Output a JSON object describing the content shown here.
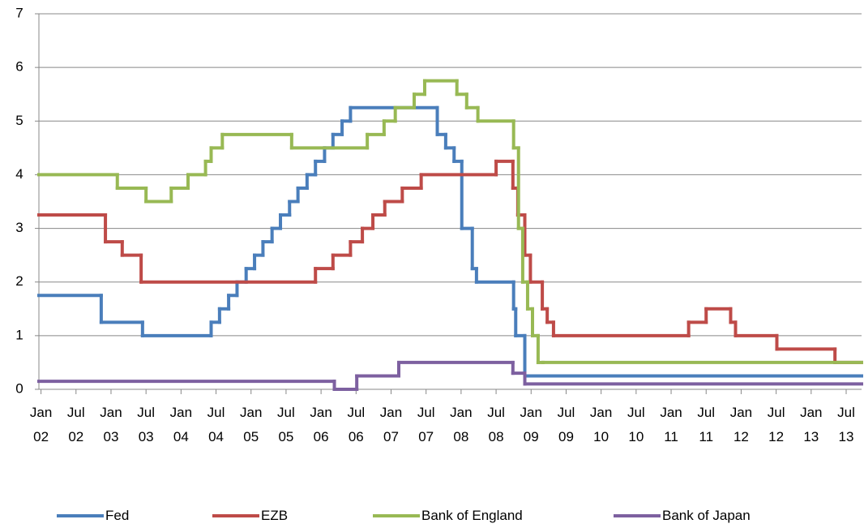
{
  "chart_data": {
    "type": "line",
    "step": true,
    "xlim": [
      2001.97,
      2013.72
    ],
    "ylim": [
      0,
      7
    ],
    "yticks": [
      0,
      1,
      2,
      3,
      4,
      5,
      6,
      7
    ],
    "grid": true,
    "legend": "bottom",
    "xticks": [
      {
        "value": 2002,
        "label": "Jan 02"
      },
      {
        "value": 2002.5,
        "label": "Jul 02"
      },
      {
        "value": 2003,
        "label": "Jan 03"
      },
      {
        "value": 2003.5,
        "label": "Jul 03"
      },
      {
        "value": 2004,
        "label": "Jan 04"
      },
      {
        "value": 2004.5,
        "label": "Jul 04"
      },
      {
        "value": 2005,
        "label": "Jan 05"
      },
      {
        "value": 2005.5,
        "label": "Jul 05"
      },
      {
        "value": 2006,
        "label": "Jan 06"
      },
      {
        "value": 2006.5,
        "label": "Jul 06"
      },
      {
        "value": 2007,
        "label": "Jan 07"
      },
      {
        "value": 2007.5,
        "label": "Jul 07"
      },
      {
        "value": 2008,
        "label": "Jan 08"
      },
      {
        "value": 2008.5,
        "label": "Jul 08"
      },
      {
        "value": 2009,
        "label": "Jan 09"
      },
      {
        "value": 2009.5,
        "label": "Jul 09"
      },
      {
        "value": 2010,
        "label": "Jan 10"
      },
      {
        "value": 2010.5,
        "label": "Jul 10"
      },
      {
        "value": 2011,
        "label": "Jan 11"
      },
      {
        "value": 2011.5,
        "label": "Jul 11"
      },
      {
        "value": 2012,
        "label": "Jan 12"
      },
      {
        "value": 2012.5,
        "label": "Jul 12"
      },
      {
        "value": 2013,
        "label": "Jan 13"
      },
      {
        "value": 2013.5,
        "label": "Jul 13"
      }
    ],
    "series": [
      {
        "name": "Fed",
        "color": "#4a7ebb",
        "x": [
          2001.97,
          2002.86,
          2003.45,
          2004.43,
          2004.55,
          2004.68,
          2004.8,
          2004.93,
          2005.05,
          2005.17,
          2005.3,
          2005.42,
          2005.55,
          2005.67,
          2005.8,
          2005.92,
          2006.05,
          2006.17,
          2006.3,
          2006.42,
          2007.66,
          2007.78,
          2007.9,
          2008.01,
          2008.16,
          2008.22,
          2008.75,
          2008.78,
          2008.91
        ],
        "values": [
          1.75,
          1.25,
          1.0,
          1.25,
          1.5,
          1.75,
          2.0,
          2.25,
          2.5,
          2.75,
          3.0,
          3.25,
          3.5,
          3.75,
          4.0,
          4.25,
          4.5,
          4.75,
          5.0,
          5.25,
          4.75,
          4.5,
          4.25,
          3.0,
          2.25,
          2.0,
          1.5,
          1.0,
          0.25
        ]
      },
      {
        "name": "EZB",
        "color": "#be4b48",
        "x": [
          2001.97,
          2002.92,
          2003.16,
          2003.43,
          2005.92,
          2006.17,
          2006.42,
          2006.59,
          2006.74,
          2006.91,
          2007.16,
          2007.43,
          2008.5,
          2008.74,
          2008.81,
          2008.91,
          2008.99,
          2009.16,
          2009.23,
          2009.32,
          2011.25,
          2011.5,
          2011.85,
          2011.92,
          2012.51,
          2013.34
        ],
        "values": [
          3.25,
          2.75,
          2.5,
          2.0,
          2.25,
          2.5,
          2.75,
          3.0,
          3.25,
          3.5,
          3.75,
          4.0,
          4.25,
          3.75,
          3.25,
          2.5,
          2.0,
          1.5,
          1.25,
          1.0,
          1.25,
          1.5,
          1.25,
          1.0,
          0.75,
          0.5
        ]
      },
      {
        "name": "Bank of England",
        "color": "#98b954",
        "x": [
          2001.97,
          2003.09,
          2003.5,
          2003.86,
          2004.1,
          2004.35,
          2004.43,
          2004.59,
          2005.58,
          2006.66,
          2006.9,
          2007.06,
          2007.33,
          2007.48,
          2007.94,
          2008.08,
          2008.24,
          2008.75,
          2008.82,
          2008.88,
          2008.95,
          2009.02,
          2009.1,
          2009.17
        ],
        "values": [
          4.0,
          3.75,
          3.5,
          3.75,
          4.0,
          4.25,
          4.5,
          4.75,
          4.5,
          4.75,
          5.0,
          5.25,
          5.5,
          5.75,
          5.5,
          5.25,
          5.0,
          4.5,
          3.0,
          2.0,
          1.5,
          1.0,
          0.5,
          0.5
        ]
      },
      {
        "name": "Bank of Japan",
        "color": "#7d60a0",
        "x": [
          2001.97,
          2006.19,
          2006.51,
          2007.11,
          2008.74,
          2008.91
        ],
        "values": [
          0.15,
          0.0,
          0.25,
          0.5,
          0.3,
          0.1
        ]
      }
    ]
  }
}
